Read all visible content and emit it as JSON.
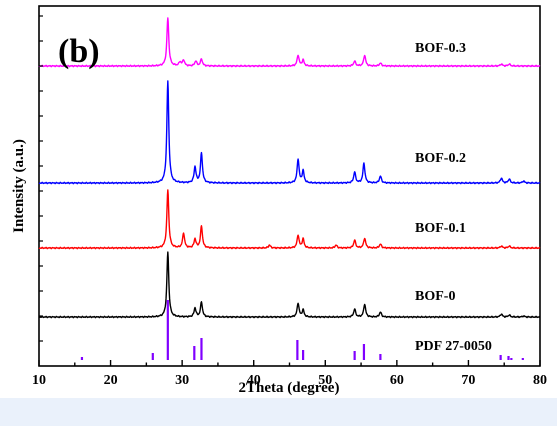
{
  "chart_data": {
    "type": "line",
    "panel_label": "(b)",
    "xlabel": "2Theta (degree)",
    "ylabel": "Intensity (a.u.)",
    "xlim": [
      10,
      80
    ],
    "xticks": [
      "10",
      "20",
      "30",
      "40",
      "50",
      "60",
      "70",
      "80"
    ],
    "y_ticks_labeled": false,
    "legend": "labels next to each trace",
    "series": [
      {
        "name": "BOF-0.3",
        "color": "#ff00ff",
        "peaks": [
          [
            28.0,
            48
          ],
          [
            29.7,
            4
          ],
          [
            30.2,
            6
          ],
          [
            31.9,
            5
          ],
          [
            32.7,
            7
          ],
          [
            46.2,
            11
          ],
          [
            46.9,
            6
          ],
          [
            54.1,
            5
          ],
          [
            55.5,
            11
          ],
          [
            57.7,
            3
          ],
          [
            74.6,
            2
          ],
          [
            75.7,
            2
          ]
        ]
      },
      {
        "name": "BOF-0.2",
        "color": "#0000ff",
        "peaks": [
          [
            28.0,
            102
          ],
          [
            31.8,
            16
          ],
          [
            32.7,
            30
          ],
          [
            46.2,
            24
          ],
          [
            46.9,
            12
          ],
          [
            54.1,
            11
          ],
          [
            55.4,
            20
          ],
          [
            57.7,
            7
          ],
          [
            74.6,
            5
          ],
          [
            75.7,
            4
          ],
          [
            77.7,
            2
          ]
        ]
      },
      {
        "name": "BOF-0.1",
        "color": "#ff0000",
        "peaks": [
          [
            28.0,
            58
          ],
          [
            30.2,
            15
          ],
          [
            31.8,
            9
          ],
          [
            32.7,
            22
          ],
          [
            42.2,
            3
          ],
          [
            46.2,
            13
          ],
          [
            46.9,
            9
          ],
          [
            51.5,
            3
          ],
          [
            54.1,
            8
          ],
          [
            55.5,
            10
          ],
          [
            57.7,
            4
          ],
          [
            74.6,
            2
          ],
          [
            75.7,
            2
          ]
        ]
      },
      {
        "name": "BOF-0",
        "color": "#000000",
        "peaks": [
          [
            28.0,
            65
          ],
          [
            31.8,
            9
          ],
          [
            32.7,
            15
          ],
          [
            46.2,
            14
          ],
          [
            46.9,
            7
          ],
          [
            54.1,
            8
          ],
          [
            55.5,
            13
          ],
          [
            57.7,
            5
          ],
          [
            74.6,
            3
          ],
          [
            75.7,
            2
          ],
          [
            77.7,
            1
          ]
        ]
      },
      {
        "name": "PDF 27-0050",
        "color": "#8000ff",
        "sticks": [
          [
            16.0,
            3
          ],
          [
            25.9,
            7
          ],
          [
            28.0,
            60
          ],
          [
            31.7,
            14
          ],
          [
            32.7,
            22
          ],
          [
            46.1,
            20
          ],
          [
            46.9,
            10
          ],
          [
            54.1,
            9
          ],
          [
            55.4,
            16
          ],
          [
            57.7,
            6
          ],
          [
            74.5,
            5
          ],
          [
            75.6,
            4
          ],
          [
            76.0,
            2
          ],
          [
            77.6,
            2
          ]
        ]
      }
    ]
  }
}
